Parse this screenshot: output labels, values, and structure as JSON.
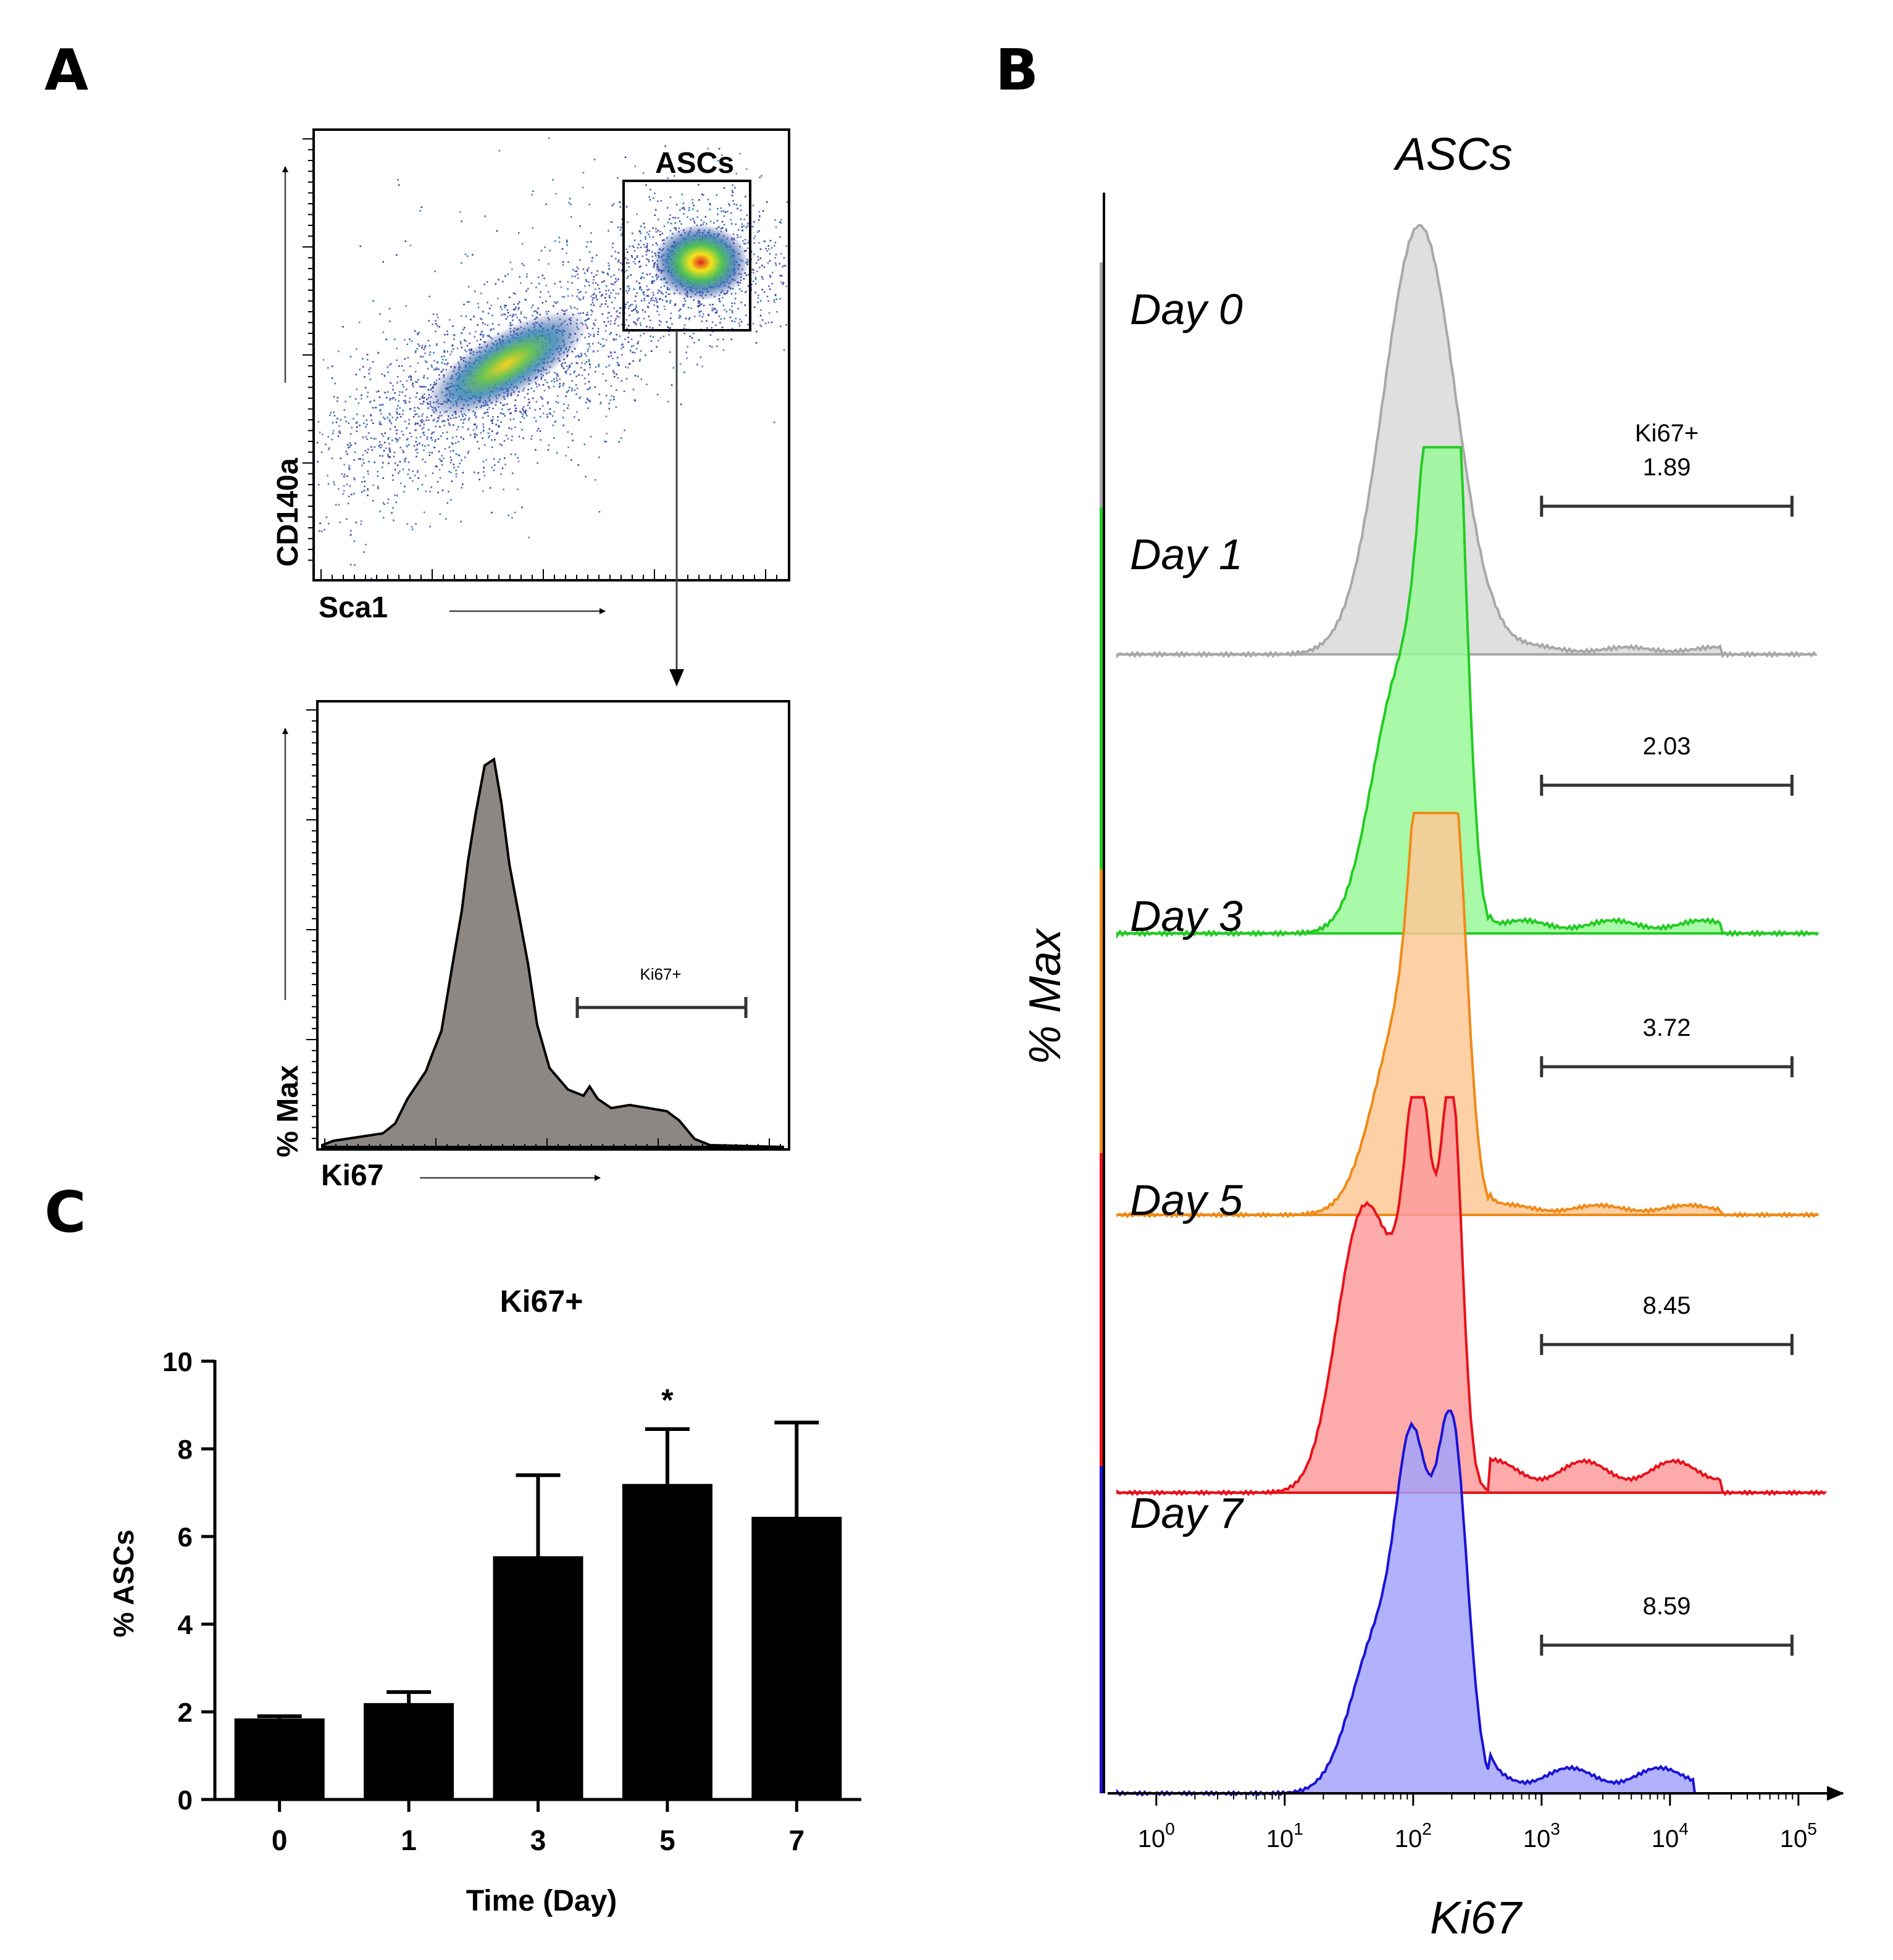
{
  "panels": {
    "a": "A",
    "b": "B",
    "c": "C"
  },
  "panel_a": {
    "scatter": {
      "gate_label": "ASCs",
      "xlabel": "Sca1",
      "ylabel": "CD140a"
    },
    "histogram": {
      "gate_label": "Ki67+",
      "xlabel": "Ki67",
      "ylabel": "% Max"
    }
  },
  "panel_b": {
    "title": "ASCs",
    "xlabel": "Ki67",
    "ylabel": "% Max",
    "gate_header": "Ki67+",
    "x_ticks": [
      {
        "base": "10",
        "exp": "0"
      },
      {
        "base": "10",
        "exp": "1"
      },
      {
        "base": "10",
        "exp": "2"
      },
      {
        "base": "10",
        "exp": "3"
      },
      {
        "base": "10",
        "exp": "4"
      },
      {
        "base": "10",
        "exp": "5"
      }
    ],
    "tracks": [
      {
        "label": "Day 0",
        "value": "1.89",
        "fill": "#d9d9d9",
        "stroke": "#a8a8a8"
      },
      {
        "label": "Day 1",
        "value": "2.03",
        "fill": "#99f899",
        "stroke": "#22cc22"
      },
      {
        "label": "Day 3",
        "value": "3.72",
        "fill": "#fdc896",
        "stroke": "#ef8a17"
      },
      {
        "label": "Day 5",
        "value": "8.45",
        "fill": "#fb9b9b",
        "stroke": "#e8111a"
      },
      {
        "label": "Day 7",
        "value": "8.59",
        "fill": "#a3a3fc",
        "stroke": "#1a12d6"
      }
    ]
  },
  "chart_data": {
    "type": "bar",
    "title": "Ki67+",
    "xlabel": "Time (Day)",
    "ylabel": "% ASCs",
    "categories": [
      "0",
      "1",
      "3",
      "5",
      "7"
    ],
    "values": [
      1.85,
      2.2,
      5.55,
      7.2,
      6.45
    ],
    "error_upper": [
      1.9,
      2.45,
      7.4,
      8.45,
      8.6
    ],
    "annotations": [
      {
        "category": "5",
        "text": "*"
      }
    ],
    "ylim": [
      0,
      10
    ],
    "y_ticks": [
      0,
      2,
      4,
      6,
      8,
      10
    ],
    "bar_color": "#000000"
  }
}
